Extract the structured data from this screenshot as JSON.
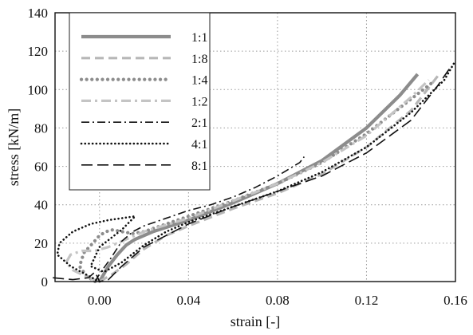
{
  "chart_data": {
    "type": "line",
    "xlabel": "strain [-]",
    "ylabel": "stress [kN/m]",
    "xlim": [
      -0.02,
      0.16
    ],
    "ylim": [
      0,
      140
    ],
    "xticks": [
      0.0,
      0.04,
      0.08,
      0.12,
      0.16
    ],
    "xtick_labels": [
      "0.00",
      "0.04",
      "0.08",
      "0.12",
      "0.16"
    ],
    "yticks": [
      0,
      20,
      40,
      60,
      80,
      100,
      120,
      140
    ],
    "ytick_labels": [
      "0",
      "20",
      "40",
      "60",
      "80",
      "100",
      "120",
      "140"
    ],
    "grid": true,
    "legend_position": "top-left",
    "series": [
      {
        "name": "1:1",
        "color": "#8c8c8c",
        "style": "solid-thick",
        "x": [
          0.0,
          0.004,
          0.008,
          0.012,
          0.016,
          0.024,
          0.04,
          0.06,
          0.08,
          0.1,
          0.12,
          0.135,
          0.143
        ],
        "y": [
          0,
          8,
          14,
          19,
          22,
          26,
          32,
          41,
          51,
          63,
          80,
          97,
          108
        ]
      },
      {
        "name": "1:8",
        "color": "#b7b7b7",
        "style": "dashed",
        "x": [
          0.0,
          0.006,
          0.012,
          0.02,
          0.03,
          0.04,
          0.06,
          0.08,
          0.1,
          0.12,
          0.14,
          0.152
        ],
        "y": [
          0,
          4,
          9,
          17,
          24,
          29,
          38,
          46,
          56,
          70,
          89,
          107
        ]
      },
      {
        "name": "1:4",
        "color": "#8c8c8c",
        "style": "dotted-thick",
        "x": [
          -0.002,
          -0.006,
          -0.009,
          -0.007,
          -0.003,
          0.0,
          0.003,
          0.006,
          0.01,
          0.015,
          0.02,
          0.03,
          0.04,
          0.06,
          0.08,
          0.1,
          0.12,
          0.14,
          0.15
        ],
        "y": [
          0,
          3,
          8,
          15,
          20,
          24,
          26,
          27,
          26,
          25,
          26,
          30,
          34,
          42,
          51,
          62,
          77,
          95,
          104
        ]
      },
      {
        "name": "1:2",
        "color": "#c4c4c4",
        "style": "dash-dot",
        "x": [
          0.0,
          -0.005,
          -0.012,
          -0.015,
          -0.013,
          -0.008,
          -0.002,
          0.004,
          0.012,
          0.02,
          0.04,
          0.06,
          0.08,
          0.1,
          0.12,
          0.14,
          0.148
        ],
        "y": [
          0,
          2,
          6,
          10,
          14,
          16,
          16,
          18,
          22,
          26,
          33,
          42,
          51,
          62,
          76,
          96,
          105
        ]
      },
      {
        "name": "2:1",
        "color": "#111111",
        "style": "dash-dot-thin",
        "x": [
          -0.002,
          0.0,
          0.005,
          0.01,
          0.015,
          0.02,
          0.03,
          0.04,
          0.05,
          0.06,
          0.07,
          0.08,
          0.09,
          0.092
        ],
        "y": [
          0,
          4,
          12,
          21,
          26,
          29,
          33,
          37,
          40,
          44,
          49,
          55,
          62,
          65
        ]
      },
      {
        "name": "4:1",
        "color": "#111111",
        "style": "dotted",
        "x": [
          0.0,
          -0.005,
          -0.013,
          -0.019,
          -0.018,
          -0.012,
          -0.004,
          0.004,
          0.01,
          0.016,
          0.01,
          0.0,
          -0.004,
          0.002,
          0.01,
          0.02,
          0.03,
          0.04,
          0.06,
          0.08,
          0.1,
          0.12,
          0.14,
          0.155,
          0.16
        ],
        "y": [
          0,
          3,
          8,
          14,
          20,
          26,
          30,
          32,
          33,
          34,
          27,
          18,
          8,
          5,
          10,
          19,
          26,
          31,
          39,
          47,
          57,
          70,
          88,
          105,
          115
        ]
      },
      {
        "name": "8:1",
        "color": "#111111",
        "style": "long-dash",
        "x": [
          -0.021,
          -0.012,
          -0.005,
          -0.002,
          0.0,
          0.004,
          0.01,
          0.02,
          0.04,
          0.06,
          0.08,
          0.1,
          0.12,
          0.14,
          0.152,
          0.158
        ],
        "y": [
          2,
          1,
          2,
          5,
          0,
          1,
          8,
          18,
          30,
          39,
          47,
          55,
          67,
          84,
          102,
          112
        ]
      }
    ]
  }
}
